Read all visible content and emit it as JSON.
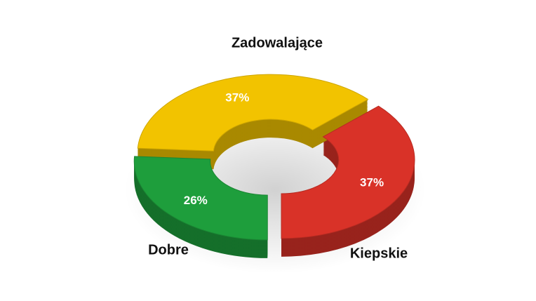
{
  "chart_data": {
    "type": "donut",
    "categories": [
      "Kiepskie",
      "Dobre",
      "Zadowalające"
    ],
    "values": [
      37,
      26,
      37
    ],
    "value_labels": [
      "37%",
      "26%",
      "37%"
    ],
    "colors": [
      "#d93228",
      "#1e9e3c",
      "#f2c300"
    ]
  }
}
